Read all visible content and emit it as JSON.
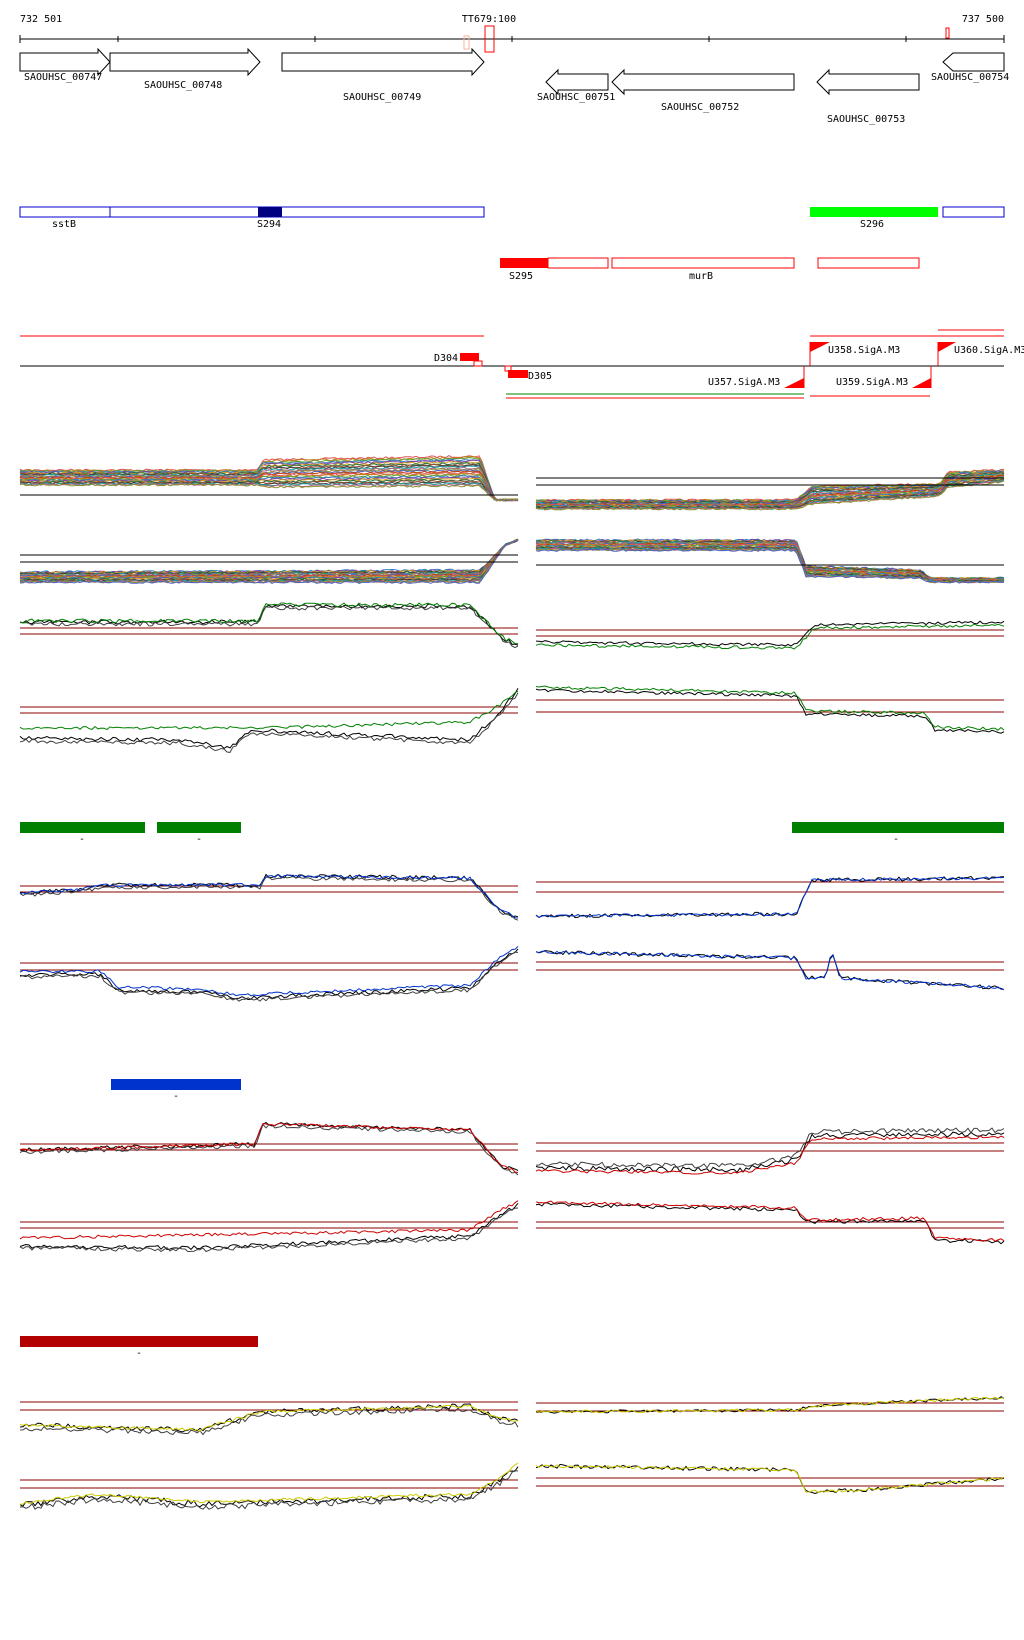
{
  "header": {
    "coord_start": "732 501",
    "coord_end": "737 500",
    "terminator_label": "TT679:100"
  },
  "genes": [
    {
      "id": "g747",
      "label": "SAOUHSC_00747",
      "strand": "+"
    },
    {
      "id": "g748",
      "label": "SAOUHSC_00748",
      "strand": "+"
    },
    {
      "id": "g749",
      "label": "SAOUHSC_00749",
      "strand": "+"
    },
    {
      "id": "g751",
      "label": "SAOUHSC_00751",
      "strand": "-"
    },
    {
      "id": "g752",
      "label": "SAOUHSC_00752",
      "strand": "-"
    },
    {
      "id": "g753",
      "label": "SAOUHSC_00753",
      "strand": "-"
    },
    {
      "id": "g754",
      "label": "SAOUHSC_00754",
      "strand": "-"
    }
  ],
  "segments": {
    "blue_labels": [
      "sstB",
      "S294"
    ],
    "green_label": "S296",
    "red_labels": [
      "S295",
      "murB"
    ]
  },
  "features": {
    "d_labels": [
      "D304",
      "D305"
    ],
    "u_labels": [
      "U357.SigA.M3",
      "U358.SigA.M3",
      "U359.SigA.M3",
      "U360.SigA.M3"
    ]
  },
  "condition_groups": [
    {
      "color": "#008000",
      "line_color": "#0033cc",
      "marker": "-"
    },
    {
      "color": "#0033cc",
      "line_color": "#cc0000",
      "marker": "-"
    },
    {
      "color": "#b30000",
      "line_color": "#cccc00",
      "marker": "-"
    }
  ],
  "colors": {
    "gene_outline": "#000000",
    "blue_segment": "#0000cc",
    "blue_fill": "#000080",
    "green_fill": "#00ff00",
    "red_segment": "#ff0000",
    "threshold_line": "#8b0000",
    "dim_green": "#008000"
  }
}
